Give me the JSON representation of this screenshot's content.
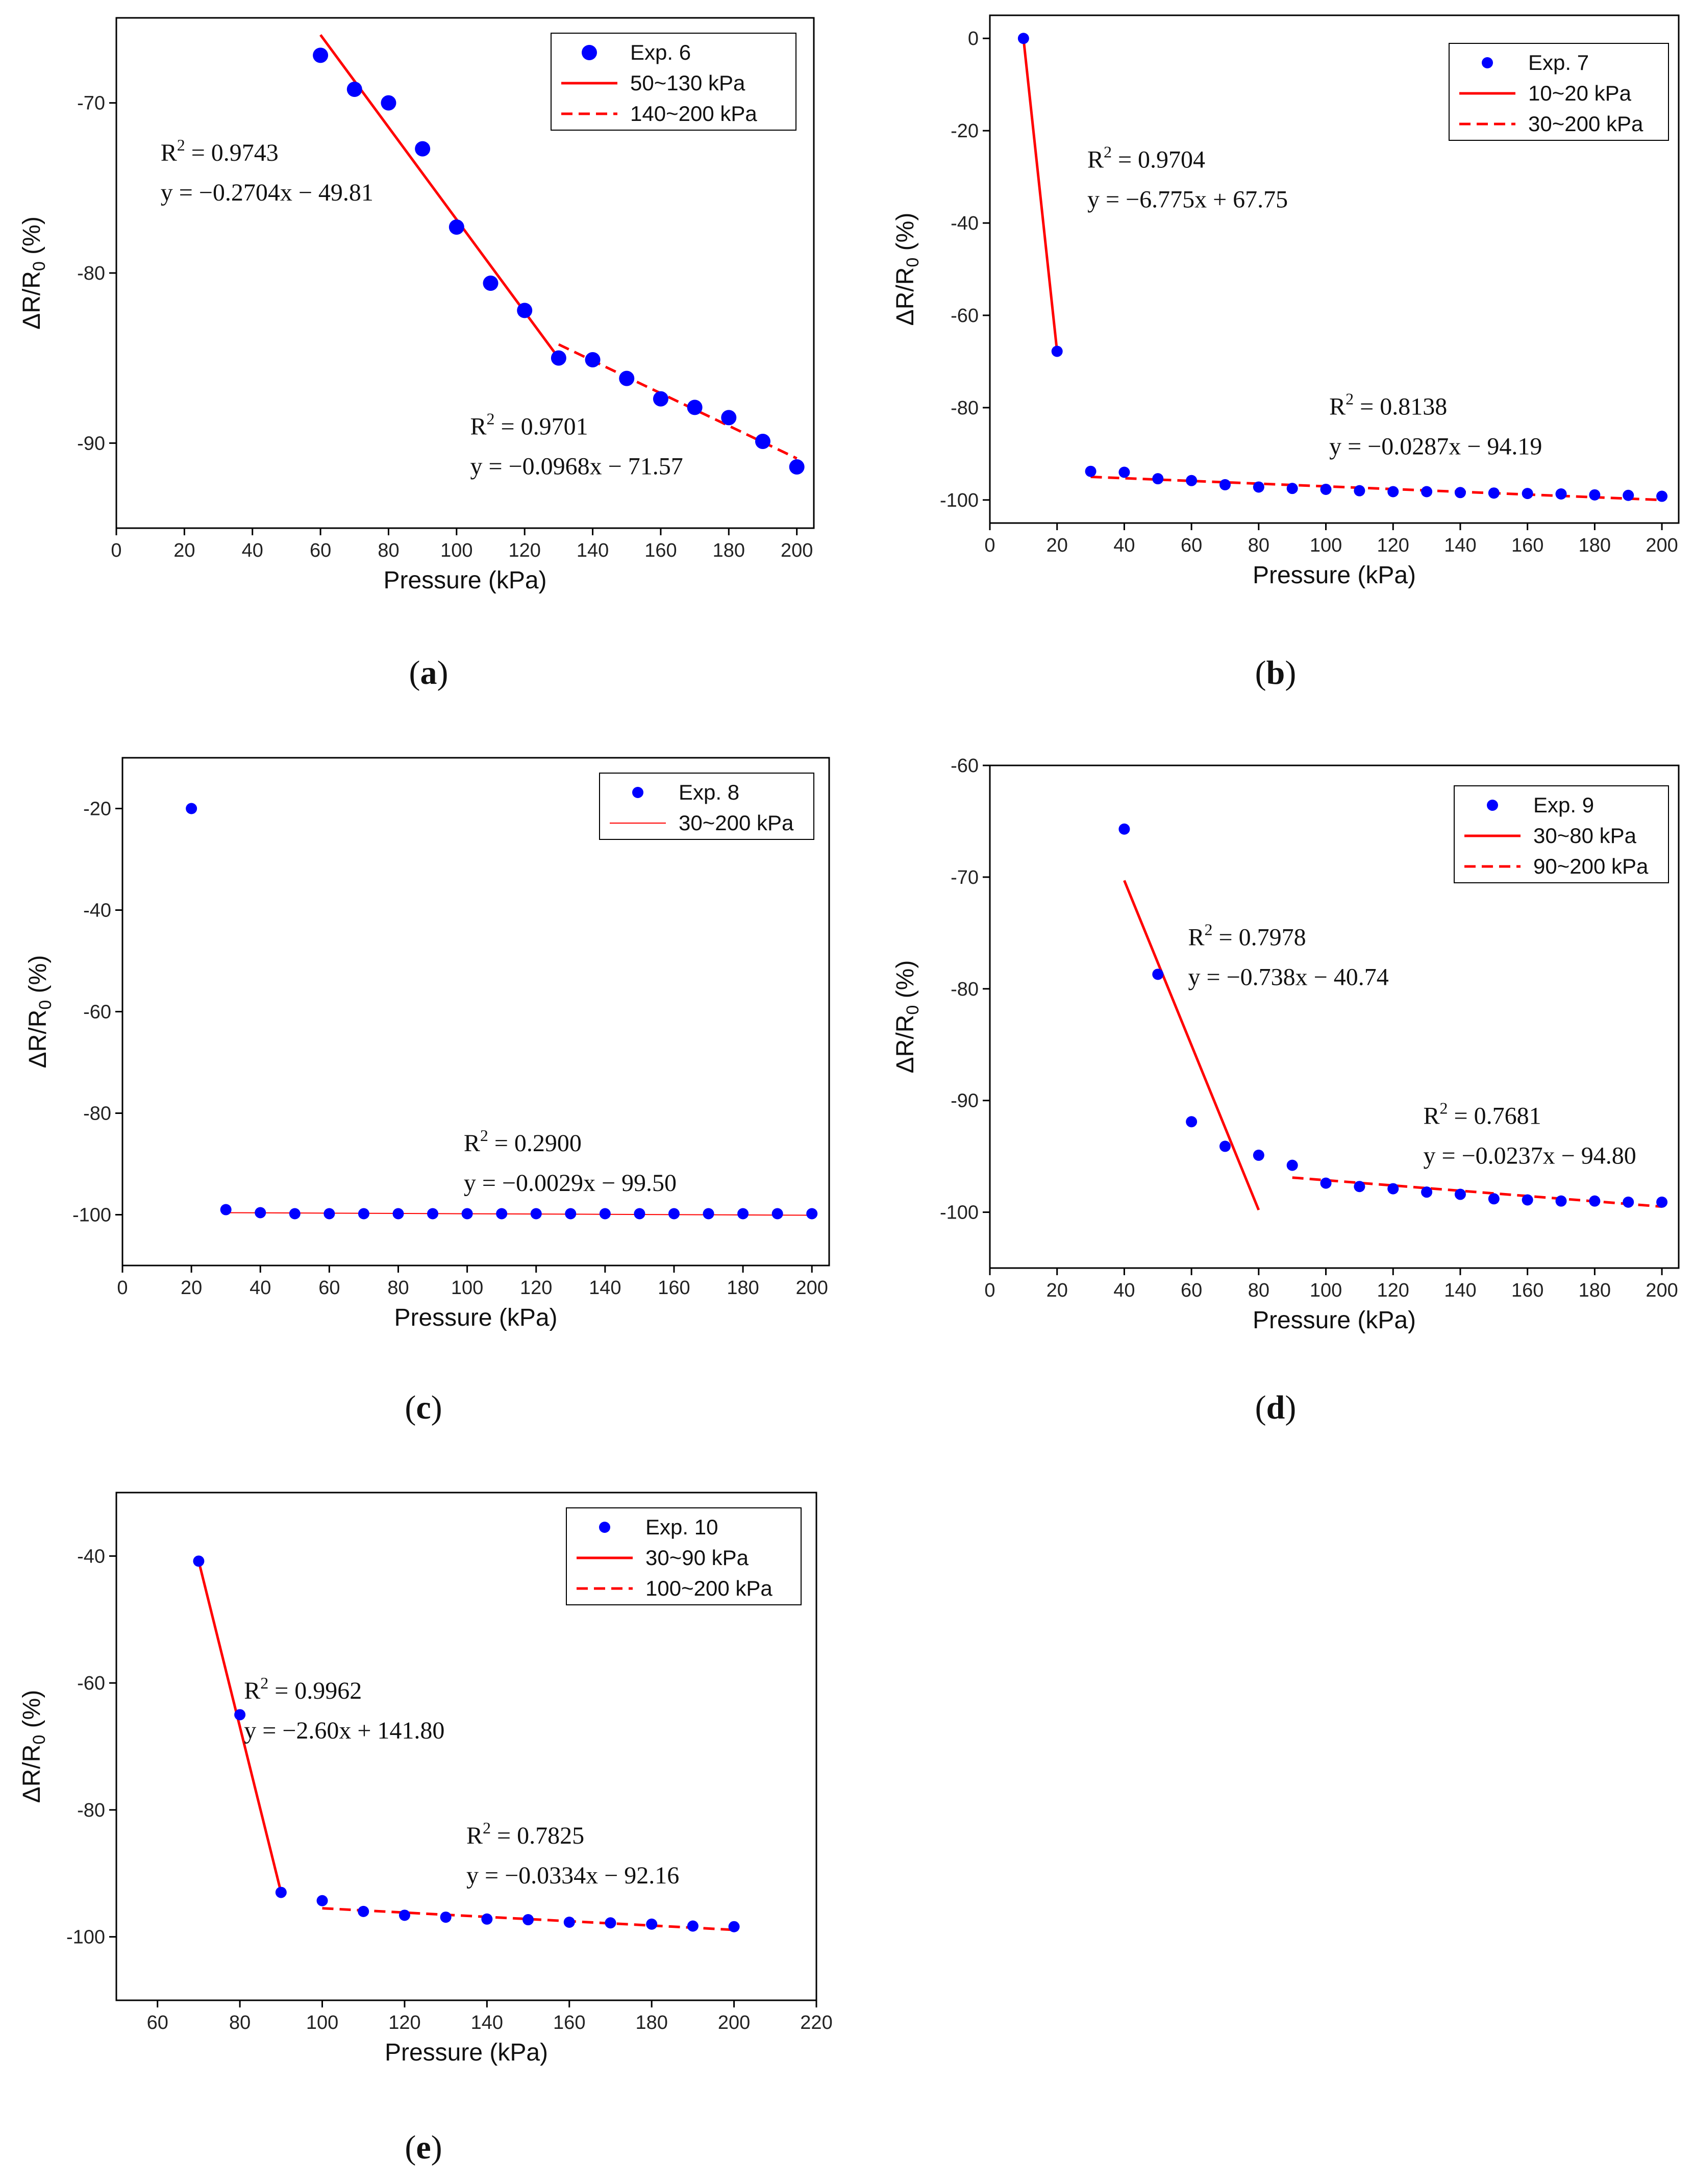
{
  "figure": {
    "ylabel_main": "ΔR/R",
    "ylabel_sub": "0",
    "ylabel_tail": " (%)",
    "r2_prefix": "R",
    "r2_sup": "2",
    "colors": {
      "marker": "#0000ff",
      "fit": "#ff0000",
      "axis": "#000000"
    }
  },
  "chart_data": [
    {
      "id": "a",
      "panel_label": "a",
      "type": "scatter",
      "xlabel": "Pressure (kPa)",
      "ylabel": "ΔR/R0 (%)",
      "xlim": [
        0,
        205
      ],
      "ylim": [
        -95,
        -65
      ],
      "xticks": [
        0,
        20,
        40,
        60,
        80,
        100,
        120,
        140,
        160,
        180,
        200
      ],
      "yticks": [
        -70,
        -80,
        -90
      ],
      "marker_size": "large",
      "series": [
        {
          "name": "Exp. 6",
          "kind": "scatter",
          "x": [
            60,
            70,
            80,
            90,
            100,
            110,
            120,
            130,
            140,
            150,
            160,
            170,
            180,
            190,
            200
          ],
          "y": [
            -67.2,
            -69.2,
            -70.0,
            -72.7,
            -77.3,
            -80.6,
            -82.2,
            -85.0,
            -85.1,
            -86.2,
            -87.4,
            -87.9,
            -88.5,
            -89.9,
            -91.4
          ]
        },
        {
          "name": "50~130 kPa",
          "kind": "line",
          "style": "solid",
          "x": [
            60,
            130
          ],
          "y": [
            -66.0,
            -85.0
          ]
        },
        {
          "name": "140~200 kPa",
          "kind": "line",
          "style": "dashed",
          "x": [
            130,
            200
          ],
          "y": [
            -84.2,
            -90.9
          ]
        }
      ],
      "annotations": [
        {
          "r2": "= 0.9743",
          "eq": "y = −0.2704x − 49.81",
          "at": [
            13,
            -73.4
          ]
        },
        {
          "r2": "= 0.9701",
          "eq": "y = −0.0968x − 71.57",
          "at": [
            104,
            -89.5
          ]
        }
      ],
      "legend_position": "top-right"
    },
    {
      "id": "b",
      "panel_label": "b",
      "type": "scatter",
      "xlabel": "Pressure (kPa)",
      "ylabel": "ΔR/R0 (%)",
      "xlim": [
        0,
        205
      ],
      "ylim": [
        -105,
        5
      ],
      "xticks": [
        0,
        20,
        40,
        60,
        80,
        100,
        120,
        140,
        160,
        180,
        200
      ],
      "yticks": [
        0,
        -20,
        -40,
        -60,
        -80,
        -100
      ],
      "marker_size": "small",
      "series": [
        {
          "name": "Exp. 7",
          "kind": "scatter",
          "x": [
            10,
            20,
            30,
            40,
            50,
            60,
            70,
            80,
            90,
            100,
            110,
            120,
            130,
            140,
            150,
            160,
            170,
            180,
            190,
            200
          ],
          "y": [
            0,
            -67.8,
            -93.8,
            -94.0,
            -95.4,
            -95.8,
            -96.7,
            -97.2,
            -97.5,
            -97.7,
            -98.0,
            -98.2,
            -98.2,
            -98.4,
            -98.5,
            -98.6,
            -98.7,
            -98.9,
            -99.0,
            -99.2
          ]
        },
        {
          "name": "10~20 kPa",
          "kind": "line",
          "style": "solid",
          "x": [
            10,
            20
          ],
          "y": [
            0,
            -67.8
          ]
        },
        {
          "name": "30~200 kPa",
          "kind": "line",
          "style": "dashed",
          "x": [
            30,
            200
          ],
          "y": [
            -95.0,
            -100.0
          ]
        }
      ],
      "annotations": [
        {
          "r2": "= 0.9704",
          "eq": "y = −6.775x + 67.75",
          "at": [
            29,
            -28.0
          ]
        },
        {
          "r2": "= 0.8138",
          "eq": "y = −0.0287x − 94.19",
          "at": [
            101,
            -81.5
          ]
        }
      ],
      "legend_position": "top-right"
    },
    {
      "id": "c",
      "panel_label": "c",
      "type": "scatter",
      "xlabel": "Pressure (kPa)",
      "ylabel": "ΔR/R0 (%)",
      "xlim": [
        0,
        205
      ],
      "ylim": [
        -110,
        -10
      ],
      "xticks": [
        0,
        20,
        40,
        60,
        80,
        100,
        120,
        140,
        160,
        180,
        200
      ],
      "yticks": [
        -20,
        -40,
        -60,
        -80,
        -100
      ],
      "marker_size": "small",
      "series": [
        {
          "name": "Exp. 8",
          "kind": "scatter",
          "x": [
            20,
            30,
            40,
            50,
            60,
            70,
            80,
            90,
            100,
            110,
            120,
            130,
            140,
            150,
            160,
            170,
            180,
            190,
            200
          ],
          "y": [
            -20,
            -99.0,
            -99.6,
            -99.8,
            -99.8,
            -99.8,
            -99.8,
            -99.8,
            -99.8,
            -99.8,
            -99.8,
            -99.8,
            -99.8,
            -99.8,
            -99.8,
            -99.8,
            -99.8,
            -99.8,
            -99.8
          ]
        },
        {
          "name": "30~200 kPa",
          "kind": "line",
          "style": "thin",
          "x": [
            30,
            200
          ],
          "y": [
            -99.6,
            -100.1
          ]
        }
      ],
      "annotations": [
        {
          "r2": "= 0.2900",
          "eq": "y = −0.0029x − 99.50",
          "at": [
            99,
            -87.5
          ]
        }
      ],
      "legend_position": "top-right"
    },
    {
      "id": "d",
      "panel_label": "d",
      "type": "scatter",
      "xlabel": "Pressure (kPa)",
      "ylabel": "ΔR/R0 (%)",
      "xlim": [
        0,
        205
      ],
      "ylim": [
        -105,
        -60
      ],
      "xticks": [
        0,
        20,
        40,
        60,
        80,
        100,
        120,
        140,
        160,
        180,
        200
      ],
      "yticks": [
        -60,
        -70,
        -80,
        -90,
        -100
      ],
      "marker_size": "small",
      "series": [
        {
          "name": "Exp. 9",
          "kind": "scatter",
          "x": [
            40,
            50,
            60,
            70,
            80,
            90,
            100,
            110,
            120,
            130,
            140,
            150,
            160,
            170,
            180,
            190,
            200
          ],
          "y": [
            -65.7,
            -78.7,
            -91.9,
            -94.1,
            -94.9,
            -95.8,
            -97.4,
            -97.7,
            -97.9,
            -98.2,
            -98.4,
            -98.8,
            -98.9,
            -99.0,
            -99.0,
            -99.1,
            -99.1
          ]
        },
        {
          "name": "30~80 kPa",
          "kind": "line",
          "style": "solid",
          "x": [
            40,
            80
          ],
          "y": [
            -70.3,
            -99.8
          ]
        },
        {
          "name": "90~200 kPa",
          "kind": "line",
          "style": "dashed",
          "x": [
            90,
            200
          ],
          "y": [
            -96.9,
            -99.5
          ]
        }
      ],
      "annotations": [
        {
          "r2": "= 0.7978",
          "eq": "y = −0.738x − 40.74",
          "at": [
            59,
            -76.1
          ]
        },
        {
          "r2": "= 0.7681",
          "eq": "y = −0.0237x − 94.80",
          "at": [
            129,
            -92.1
          ]
        }
      ],
      "legend_position": "top-right"
    },
    {
      "id": "e",
      "panel_label": "e",
      "type": "scatter",
      "xlabel": "Pressure (kPa)",
      "ylabel": "ΔR/R0 (%)",
      "xlim": [
        50,
        220
      ],
      "ylim": [
        -110,
        -30
      ],
      "xticks": [
        60,
        80,
        100,
        120,
        140,
        160,
        180,
        200,
        220
      ],
      "yticks": [
        -40,
        -60,
        -80,
        -100
      ],
      "marker_size": "small",
      "series": [
        {
          "name": "Exp. 10",
          "kind": "scatter",
          "x": [
            70,
            80,
            90,
            100,
            110,
            120,
            130,
            140,
            150,
            160,
            170,
            180,
            190,
            200
          ],
          "y": [
            -40.8,
            -65.0,
            -93.0,
            -94.3,
            -96.0,
            -96.6,
            -96.9,
            -97.2,
            -97.3,
            -97.7,
            -97.8,
            -98.0,
            -98.3,
            -98.4
          ]
        },
        {
          "name": "30~90 kPa",
          "kind": "line",
          "style": "solid",
          "x": [
            70,
            90
          ],
          "y": [
            -40.8,
            -93.0
          ]
        },
        {
          "name": "100~200 kPa",
          "kind": "line",
          "style": "dashed",
          "x": [
            100,
            200
          ],
          "y": [
            -95.5,
            -98.9
          ]
        }
      ],
      "annotations": [
        {
          "r2": "= 0.9962",
          "eq": "y = −2.60x + 141.80",
          "at": [
            81,
            -62.5
          ]
        },
        {
          "r2": "= 0.7825",
          "eq": "y = −0.0334x − 92.16",
          "at": [
            135,
            -85.3
          ]
        }
      ],
      "legend_position": "top-right"
    }
  ]
}
